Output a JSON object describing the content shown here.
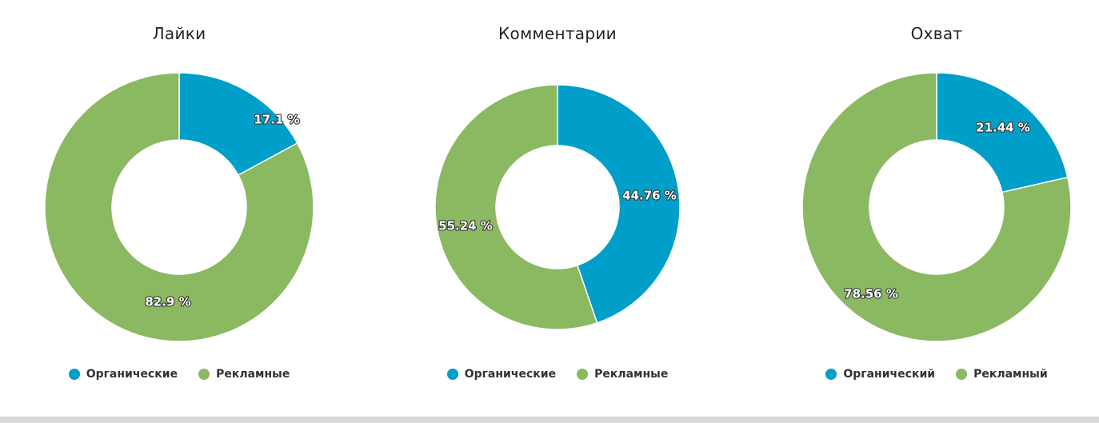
{
  "colors": {
    "organic": "#009fc9",
    "ads": "#8ab962"
  },
  "chart_data": [
    {
      "type": "pie",
      "title": "Лайки",
      "categories": [
        "Органические",
        "Рекламные"
      ],
      "values": [
        17.1,
        82.9
      ],
      "labels": [
        "17.1 %",
        "82.9 %"
      ]
    },
    {
      "type": "pie",
      "title": "Комментарии",
      "categories": [
        "Органические",
        "Рекламные"
      ],
      "values": [
        44.76,
        55.24
      ],
      "labels": [
        "44.76 %",
        "55.24 %"
      ]
    },
    {
      "type": "pie",
      "title": "Охват",
      "categories": [
        "Органический",
        "Рекламный"
      ],
      "values": [
        21.44,
        78.56
      ],
      "labels": [
        "21.44 %",
        "78.56 %"
      ]
    }
  ]
}
